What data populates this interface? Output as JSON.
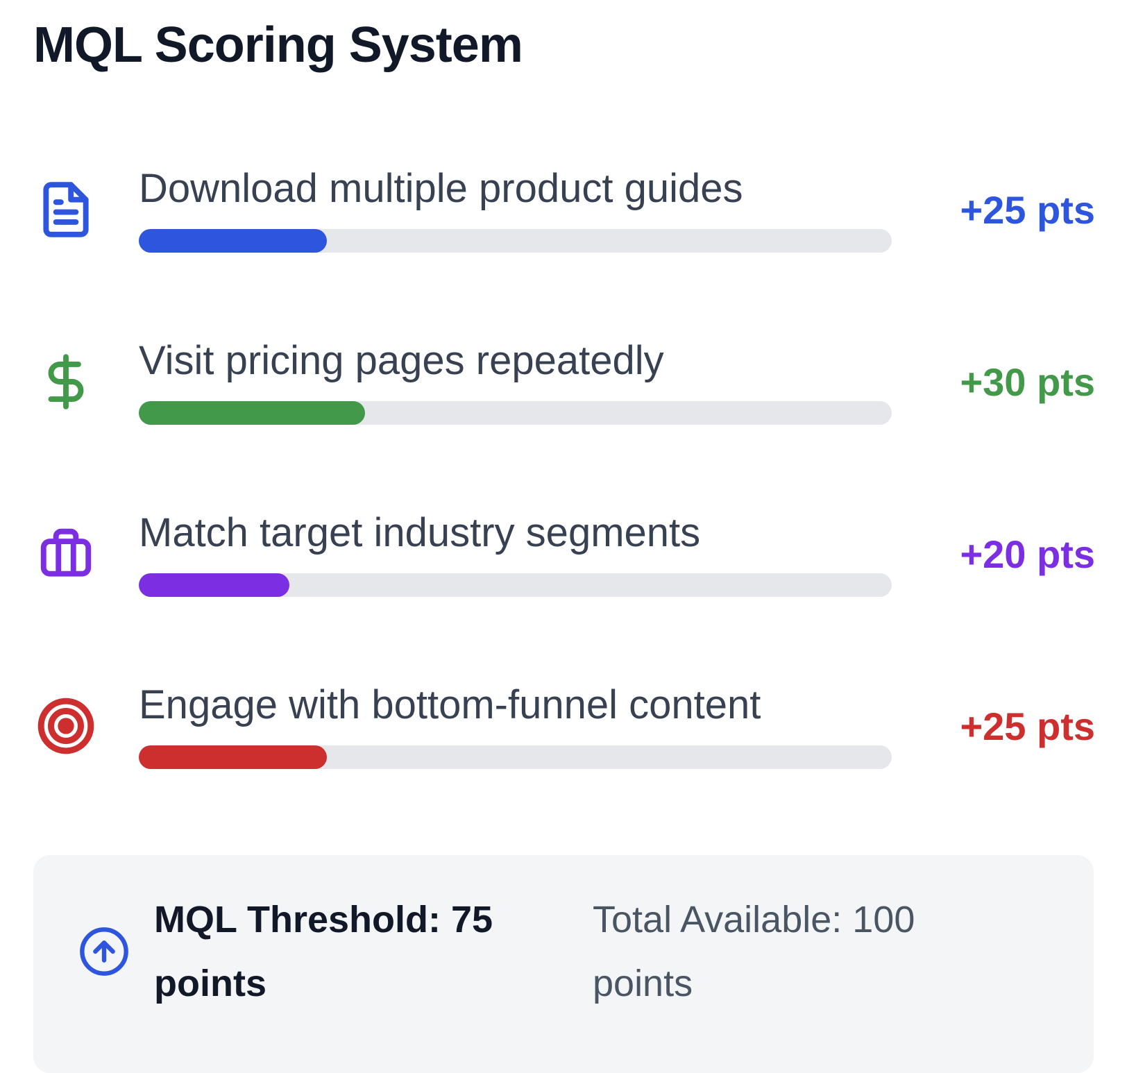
{
  "title": "MQL Scoring System",
  "items": [
    {
      "icon": "file-text-icon",
      "label": "Download multiple product guides",
      "points_label": "+25 pts",
      "points": 25,
      "percent": 25,
      "color": "#2e55de"
    },
    {
      "icon": "dollar-icon",
      "label": "Visit pricing pages repeatedly",
      "points_label": "+30 pts",
      "points": 30,
      "percent": 30,
      "color": "#43994a"
    },
    {
      "icon": "briefcase-icon",
      "label": "Match target industry segments",
      "points_label": "+20 pts",
      "points": 20,
      "percent": 20,
      "color": "#7c2ee2"
    },
    {
      "icon": "target-icon",
      "label": "Engage with bottom-funnel content",
      "points_label": "+25 pts",
      "points": 25,
      "percent": 25,
      "color": "#cd2f2f"
    }
  ],
  "summary": {
    "icon": "circle-arrow-up-icon",
    "icon_color": "#2e55de",
    "threshold_label": "MQL Threshold: 75 points",
    "threshold_value": 75,
    "total_label": "Total Available: 100 points",
    "total_value": 100
  },
  "colors": {
    "track": "#e5e7eb",
    "summary_background": "#f4f5f6",
    "title_text": "#111827",
    "label_text": "#374151",
    "total_text": "#4a5563"
  }
}
